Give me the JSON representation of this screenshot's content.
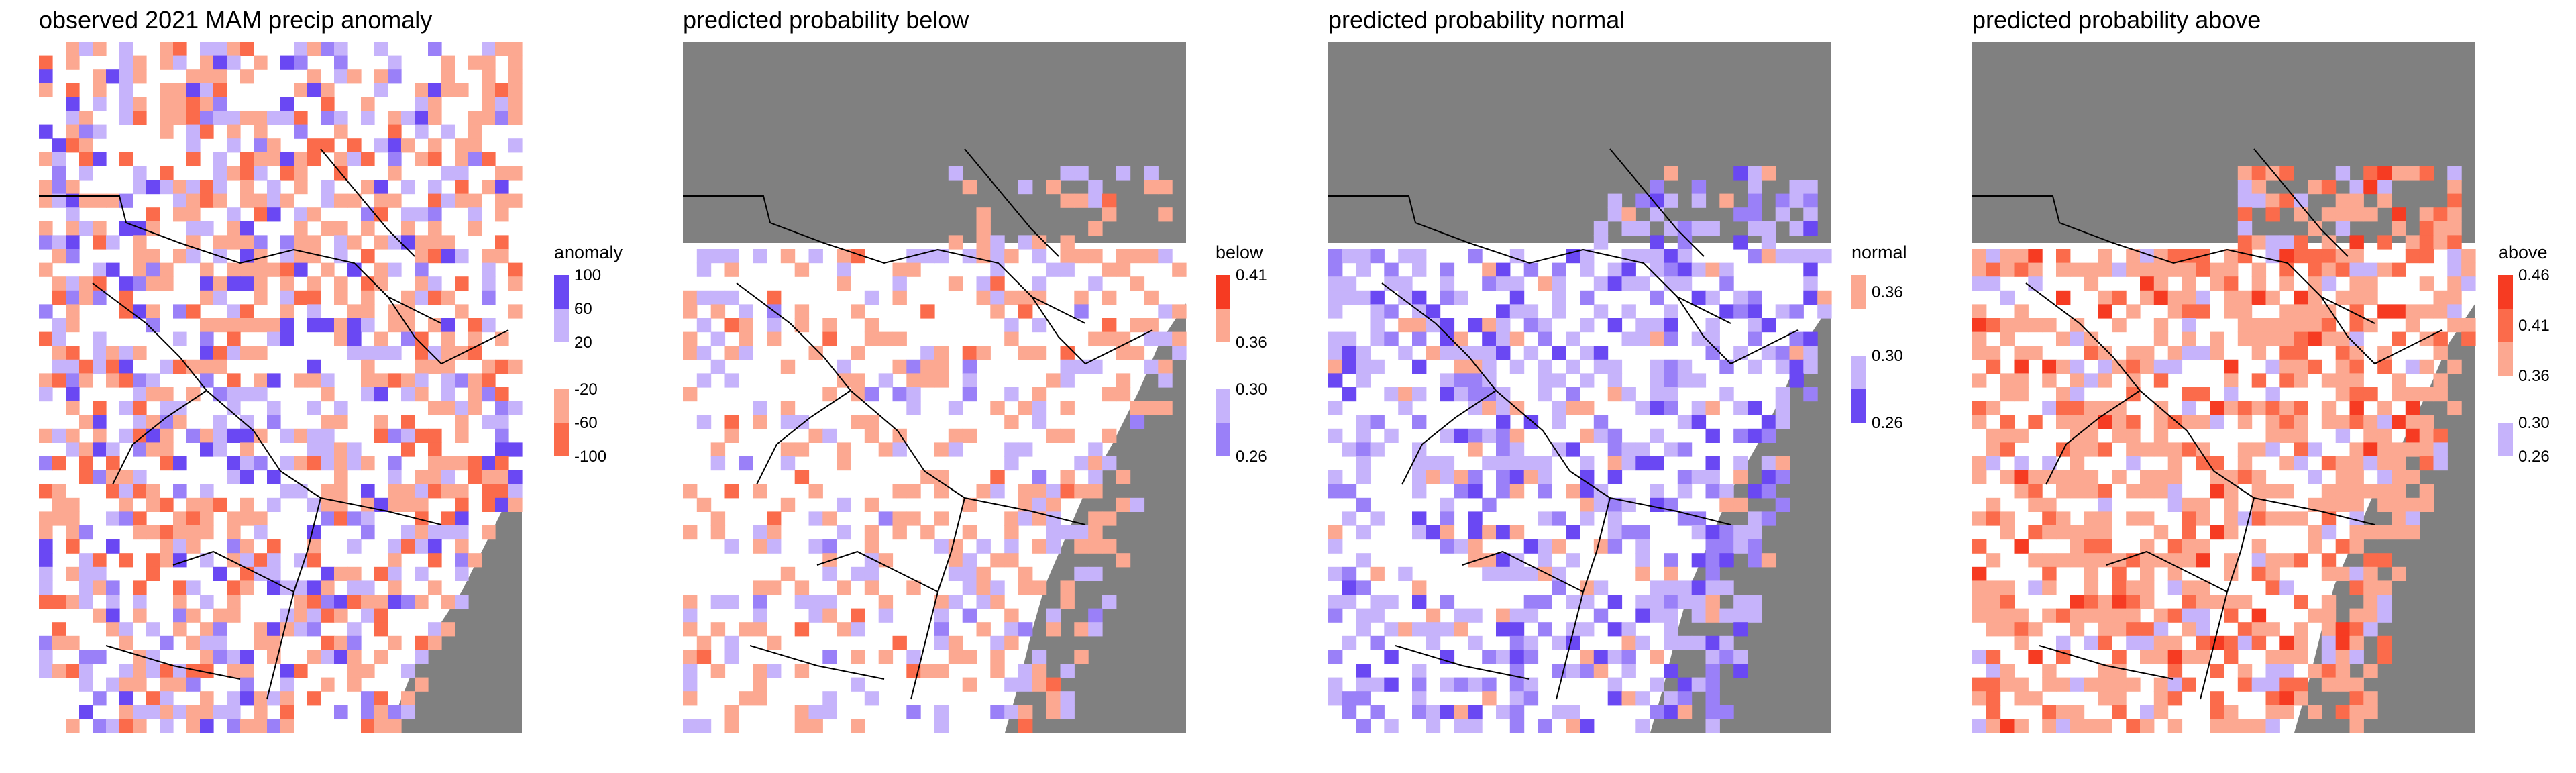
{
  "colors": {
    "sea": "#808080",
    "land": "#ffffff",
    "border": "#000000",
    "red_light": "#fca891",
    "red_mid": "#fb6b4b",
    "red_dark": "#f63b22",
    "blue_light": "#c6b3fb",
    "blue_mid": "#9a80f8",
    "blue_dark": "#6a48f3"
  },
  "panels": [
    {
      "id": "observed",
      "title": "observed 2021 MAM precip anomaly",
      "legend": {
        "title": "anomaly",
        "groups": [
          {
            "colors": [
              "#6a48f3",
              "#c6b3fb"
            ],
            "labels": [
              "100",
              "60",
              "20"
            ]
          },
          {
            "colors": [
              "#fca891",
              "#fb6b4b"
            ],
            "labels": [
              "-20",
              "-60",
              "-100"
            ]
          }
        ]
      }
    },
    {
      "id": "below",
      "title": "predicted probability below",
      "legend": {
        "title": "below",
        "groups": [
          {
            "colors": [
              "#f63b22",
              "#fca891"
            ],
            "labels": [
              "0.41",
              "0.36"
            ]
          },
          {
            "colors": [
              "#c6b3fb",
              "#9a80f8"
            ],
            "labels": [
              "0.30",
              "0.26"
            ]
          }
        ]
      }
    },
    {
      "id": "normal",
      "title": "predicted probability normal",
      "legend": {
        "title": "normal",
        "groups": [
          {
            "colors": [
              "#fca891"
            ],
            "labels": [
              "0.36"
            ]
          },
          {
            "colors": [
              "#c6b3fb",
              "#6a48f3"
            ],
            "labels": [
              "0.30",
              "0.26"
            ]
          }
        ]
      }
    },
    {
      "id": "above",
      "title": "predicted probability above",
      "legend": {
        "title": "above",
        "groups": [
          {
            "colors": [
              "#f63b22",
              "#fb6b4b",
              "#fca891"
            ],
            "labels": [
              "0.46",
              "0.41",
              "0.36"
            ]
          },
          {
            "colors": [
              "#c6b3fb"
            ],
            "labels": [
              "0.30",
              "0.26"
            ]
          }
        ]
      }
    }
  ]
}
